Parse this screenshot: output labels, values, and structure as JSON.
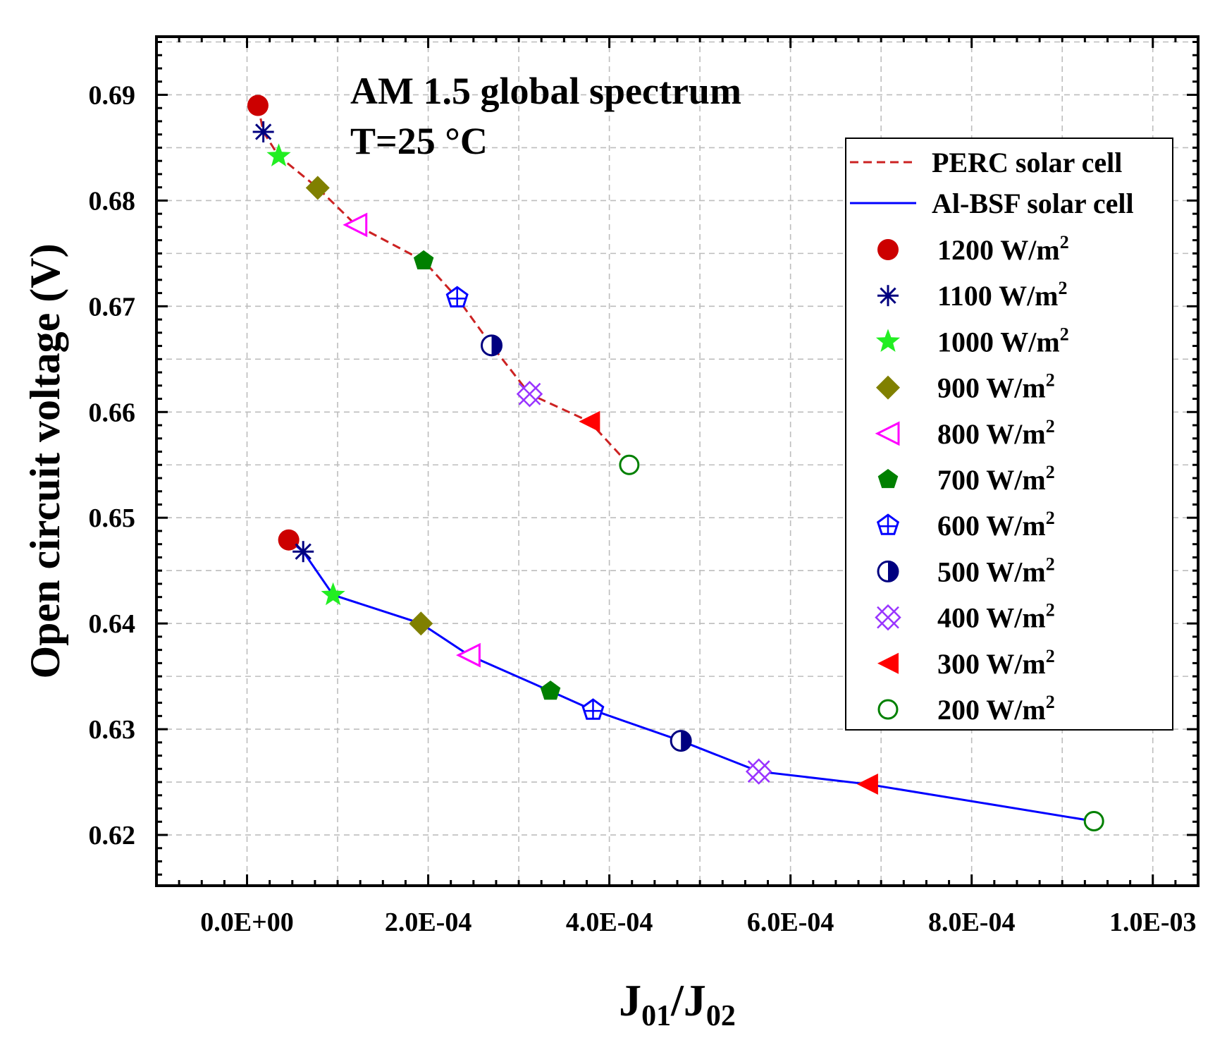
{
  "chart_data": {
    "type": "scatter",
    "title": "",
    "annotations": [
      "AM 1.5 global spectrum",
      "T=25 °C"
    ],
    "xlabel": {
      "main": "J",
      "sub1": "01",
      "slash": "/J",
      "sub2": "02"
    },
    "ylabel": "Open circuit voltage (V)",
    "xlim": [
      -0.0001,
      0.00105
    ],
    "ylim": [
      0.6152,
      0.6955
    ],
    "x_ticks": [
      0,
      0.0002,
      0.0004,
      0.0006,
      0.0008,
      0.001
    ],
    "x_tick_labels": [
      "0.0E+00",
      "2.0E-04",
      "4.0E-04",
      "6.0E-04",
      "8.0E-04",
      "1.0E-03"
    ],
    "y_ticks": [
      0.62,
      0.63,
      0.64,
      0.65,
      0.66,
      0.67,
      0.68,
      0.69
    ],
    "y_tick_labels": [
      "0.62",
      "0.63",
      "0.64",
      "0.65",
      "0.66",
      "0.67",
      "0.68",
      "0.69"
    ],
    "grid": true,
    "legend_position": "right",
    "irradiance_levels": [
      {
        "label": "1200 W/m",
        "sup": "2",
        "marker": "circle",
        "color": "#cc0000"
      },
      {
        "label": "1100 W/m",
        "sup": "2",
        "marker": "asterisk",
        "color": "#000080"
      },
      {
        "label": "1000 W/m",
        "sup": "2",
        "marker": "star",
        "color": "#22ee22"
      },
      {
        "label": "900 W/m",
        "sup": "2",
        "marker": "diamond",
        "color": "#808000"
      },
      {
        "label": "800 W/m",
        "sup": "2",
        "marker": "triangle-left-open",
        "color": "#ff00ff"
      },
      {
        "label": "700 W/m",
        "sup": "2",
        "marker": "pentagon",
        "color": "#008000"
      },
      {
        "label": "600 W/m",
        "sup": "2",
        "marker": "pentagon-cross-open",
        "color": "#0000ff"
      },
      {
        "label": "500 W/m",
        "sup": "2",
        "marker": "half-circle",
        "color": "#000080"
      },
      {
        "label": "400 W/m",
        "sup": "2",
        "marker": "x-square-open",
        "color": "#9933ff"
      },
      {
        "label": "300 W/m",
        "sup": "2",
        "marker": "triangle-left",
        "color": "#ff0000"
      },
      {
        "label": "200 W/m",
        "sup": "2",
        "marker": "circle-open",
        "color": "#008000"
      }
    ],
    "series": [
      {
        "name": "PERC solar cell",
        "line_style": "dashed",
        "color": "#cc2222",
        "x": [
          1.2e-05,
          1.8e-05,
          3.5e-05,
          7.8e-05,
          0.00012,
          0.000195,
          0.000232,
          0.00027,
          0.000312,
          0.000378,
          0.000422
        ],
        "y": [
          0.689,
          0.6865,
          0.6842,
          0.6812,
          0.6777,
          0.6743,
          0.6708,
          0.6663,
          0.6617,
          0.6591,
          0.655
        ]
      },
      {
        "name": "Al-BSF solar cell",
        "line_style": "solid",
        "color": "#0000ff",
        "x": [
          4.6e-05,
          6.2e-05,
          9.5e-05,
          0.000192,
          0.000245,
          0.000335,
          0.000382,
          0.000479,
          0.000565,
          0.000685,
          0.000935
        ],
        "y": [
          0.6479,
          0.6468,
          0.6427,
          0.64,
          0.637,
          0.6336,
          0.6318,
          0.6289,
          0.626,
          0.6248,
          0.6213
        ]
      }
    ]
  }
}
